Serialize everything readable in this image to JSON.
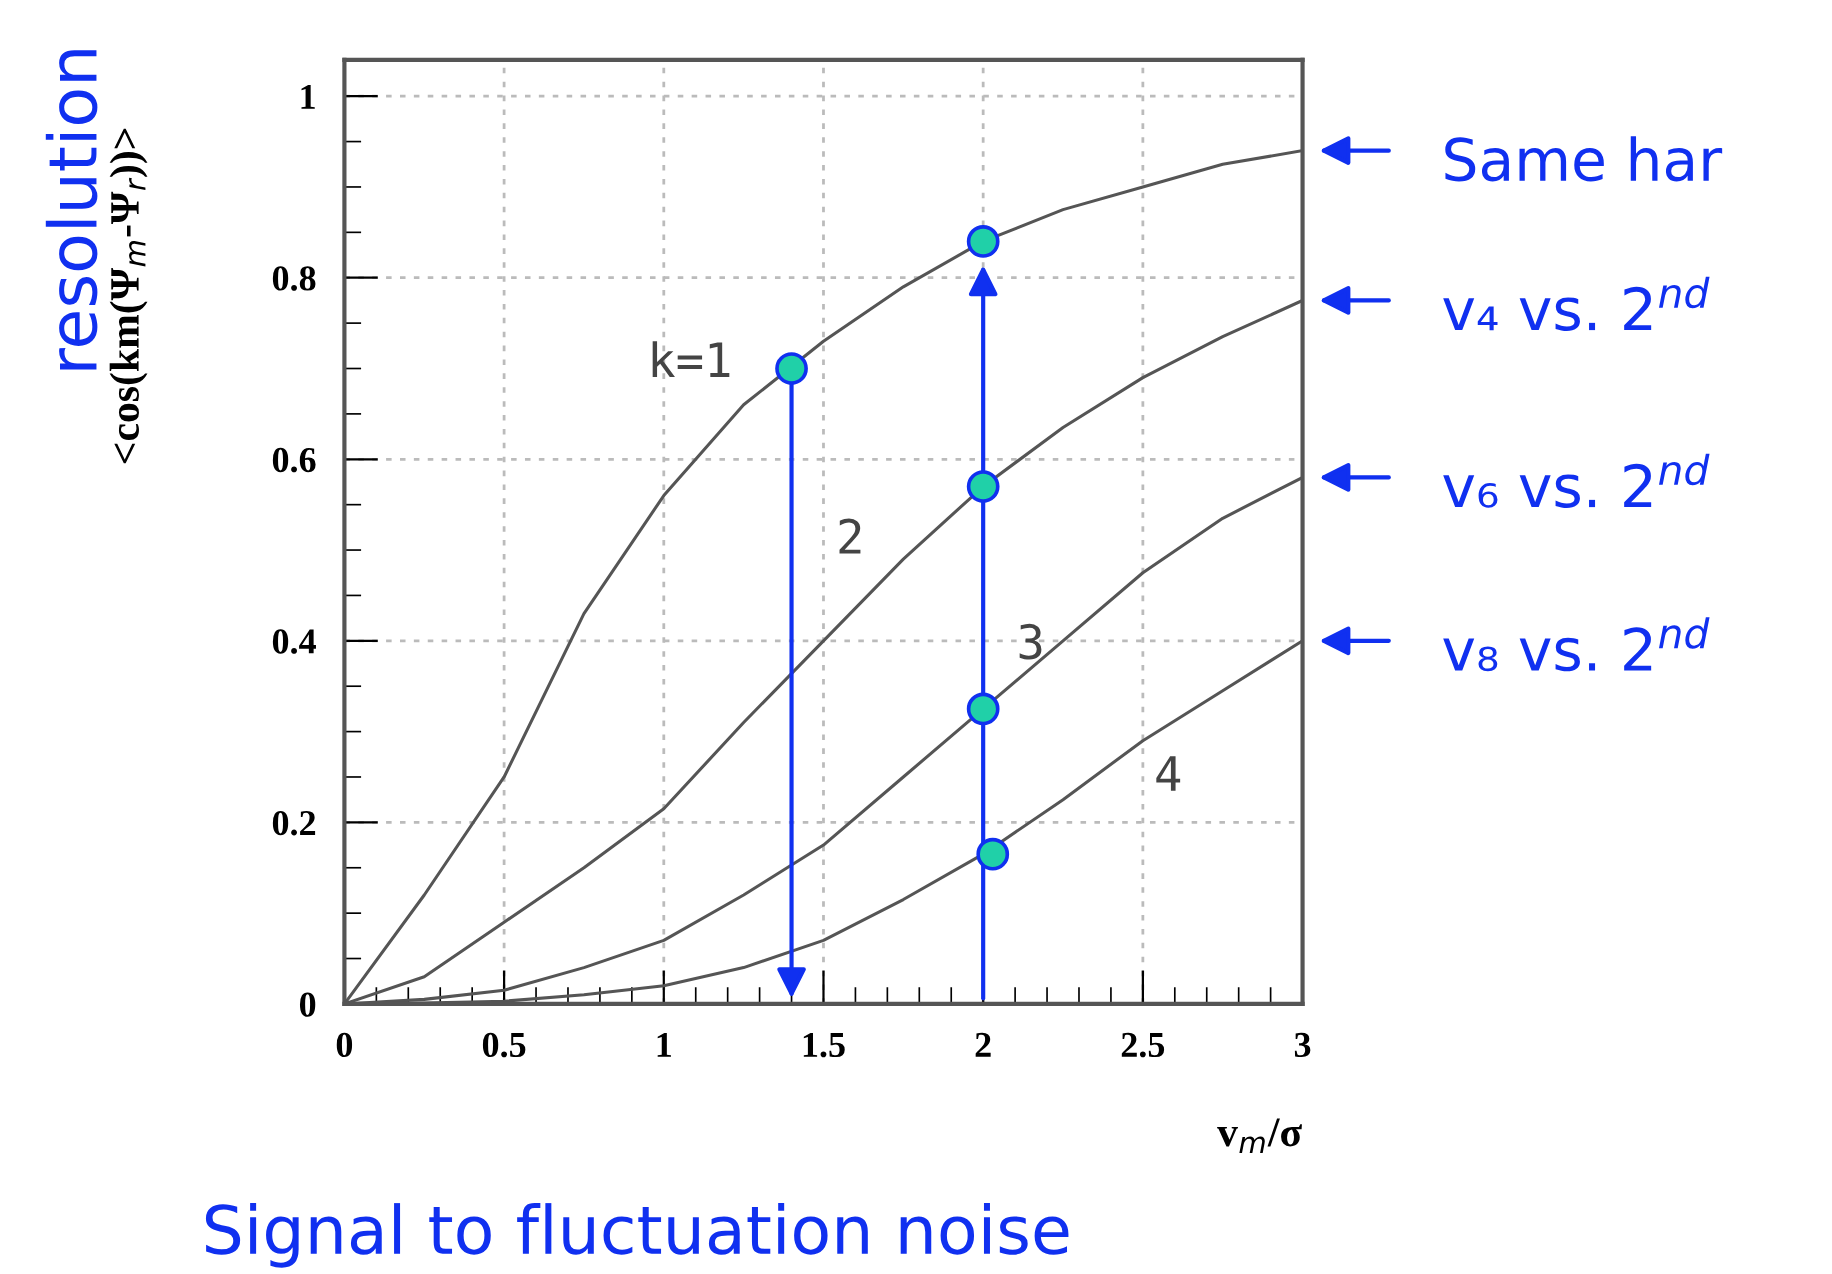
{
  "chart_data": {
    "type": "line",
    "xlabel": "v$_{m}$/σ",
    "ylabel": "<cos(km(Ψ$_{m}$-Ψ$_{r}$))>",
    "x": [
      0,
      0.25,
      0.5,
      0.75,
      1,
      1.25,
      1.5,
      1.75,
      2,
      2.25,
      2.5,
      2.75,
      3
    ],
    "series": [
      {
        "name": "k=1",
        "color": "#555555",
        "values": [
          0,
          0.12,
          0.25,
          0.43,
          0.56,
          0.66,
          0.73,
          0.79,
          0.84,
          0.875,
          0.9,
          0.925,
          0.94
        ]
      },
      {
        "name": "2",
        "color": "#555555",
        "values": [
          0,
          0.03,
          0.09,
          0.15,
          0.215,
          0.31,
          0.4,
          0.49,
          0.57,
          0.635,
          0.69,
          0.735,
          0.775
        ]
      },
      {
        "name": "3",
        "color": "#555555",
        "values": [
          0,
          0.005,
          0.015,
          0.04,
          0.07,
          0.12,
          0.175,
          0.25,
          0.325,
          0.4,
          0.475,
          0.535,
          0.58
        ]
      },
      {
        "name": "4",
        "color": "#555555",
        "values": [
          0,
          0.001,
          0.003,
          0.01,
          0.02,
          0.04,
          0.07,
          0.115,
          0.165,
          0.225,
          0.29,
          0.345,
          0.4
        ]
      },
      {
        "type": "scatter",
        "marker": "circle",
        "color": "#20d0a8",
        "x": [
          1.4,
          2,
          2,
          2,
          2.03
        ],
        "values": [
          0.7,
          0.84,
          0.57,
          0.325,
          0.165
        ]
      }
    ],
    "xlim": [
      0,
      3
    ],
    "ylim": [
      0,
      1.04
    ],
    "xticks": [
      0,
      0.5,
      1,
      1.5,
      2,
      2.5,
      3
    ],
    "yticks": [
      0,
      0.2,
      0.4,
      0.6,
      0.8,
      1
    ],
    "grid": true,
    "line_style": "solid",
    "annotations": [
      "Same har",
      "v₄ vs. 2$^{nd}$",
      "v₆ vs. 2$^{nd}$",
      "v₈ vs. 2$^{nd}$",
      "resolution",
      "Signal to fluctuation noise"
    ]
  }
}
